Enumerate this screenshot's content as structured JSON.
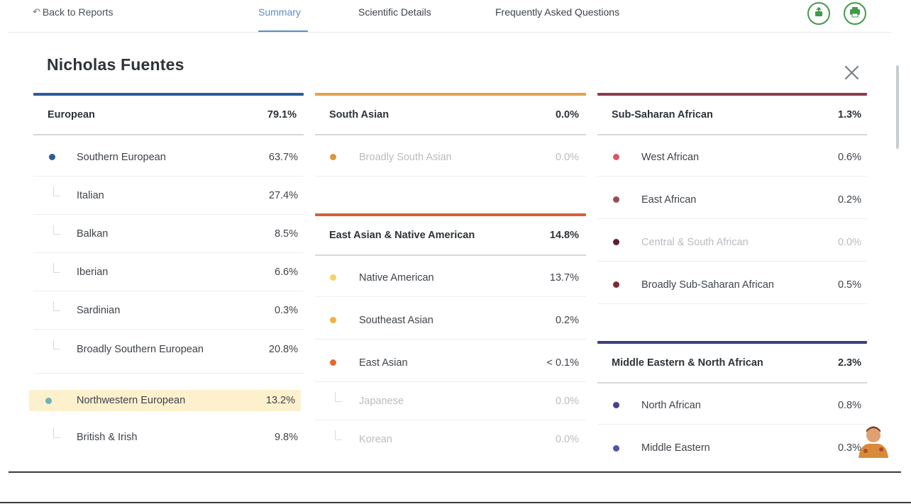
{
  "nav": {
    "back_arrow": "↶",
    "back_label": "Back to Reports",
    "tabs": [
      "Summary",
      "Scientific Details",
      "Frequently Asked Questions"
    ],
    "active_tab": "Summary",
    "icons": [
      "share-icon",
      "print-icon"
    ]
  },
  "title": "Nicholas Fuentes",
  "columns": [
    {
      "categories": [
        {
          "name": "European",
          "percent": "79.1%",
          "color": "#2d5b9a",
          "rows": [
            {
              "label": "Southern European",
              "percent": "63.7%",
              "dot": "#2d5b9a"
            },
            {
              "label": "Italian",
              "percent": "27.4%"
            },
            {
              "label": "Balkan",
              "percent": "8.5%"
            },
            {
              "label": "Iberian",
              "percent": "6.6%"
            },
            {
              "label": "Sardinian",
              "percent": "0.3%"
            },
            {
              "label": "Broadly Southern European",
              "percent": "20.8%"
            },
            {
              "label": "Northwestern European",
              "percent": "13.2%",
              "dot": "#6fb3b8"
            },
            {
              "label": "British & Irish",
              "percent": "9.8%"
            }
          ]
        }
      ]
    },
    {
      "categories": [
        {
          "name": "South Asian",
          "percent": "0.0%",
          "color": "#e0a24a",
          "rows": [
            {
              "label": "Broadly South Asian",
              "percent": "0.0%",
              "dot": "#e0943c"
            }
          ]
        },
        {
          "name": "East Asian & Native American",
          "percent": "14.8%",
          "color": "#d0623a",
          "rows": [
            {
              "label": "Native American",
              "percent": "13.7%",
              "dot": "#f3d36a"
            },
            {
              "label": "Southeast Asian",
              "percent": "0.2%",
              "dot": "#f0b33a"
            },
            {
              "label": "East Asian",
              "percent": "< 0.1%",
              "dot": "#e06a2e"
            },
            {
              "label": "Japanese",
              "percent": "0.0%"
            },
            {
              "label": "Korean",
              "percent": "0.0%"
            }
          ]
        }
      ]
    },
    {
      "categories": [
        {
          "name": "Sub-Saharan African",
          "percent": "1.3%",
          "color": "#8c3a4e",
          "rows": [
            {
              "label": "West African",
              "percent": "0.6%",
              "dot": "#d9576d"
            },
            {
              "label": "East African",
              "percent": "0.2%",
              "dot": "#9a4a5a"
            },
            {
              "label": "Central & South African",
              "percent": "0.0%",
              "dot": "#5a2230"
            },
            {
              "label": "Broadly Sub-Saharan African",
              "percent": "0.5%",
              "dot": "#7a2a3a"
            }
          ]
        },
        {
          "name": "Middle Eastern & North African",
          "percent": "2.3%",
          "color": "#3d3f7a",
          "rows": [
            {
              "label": "North African",
              "percent": "0.8%",
              "dot": "#4a3f8a"
            },
            {
              "label": "Middle Eastern",
              "percent": "0.3%",
              "dot": "#4a56b0"
            }
          ]
        }
      ]
    }
  ]
}
